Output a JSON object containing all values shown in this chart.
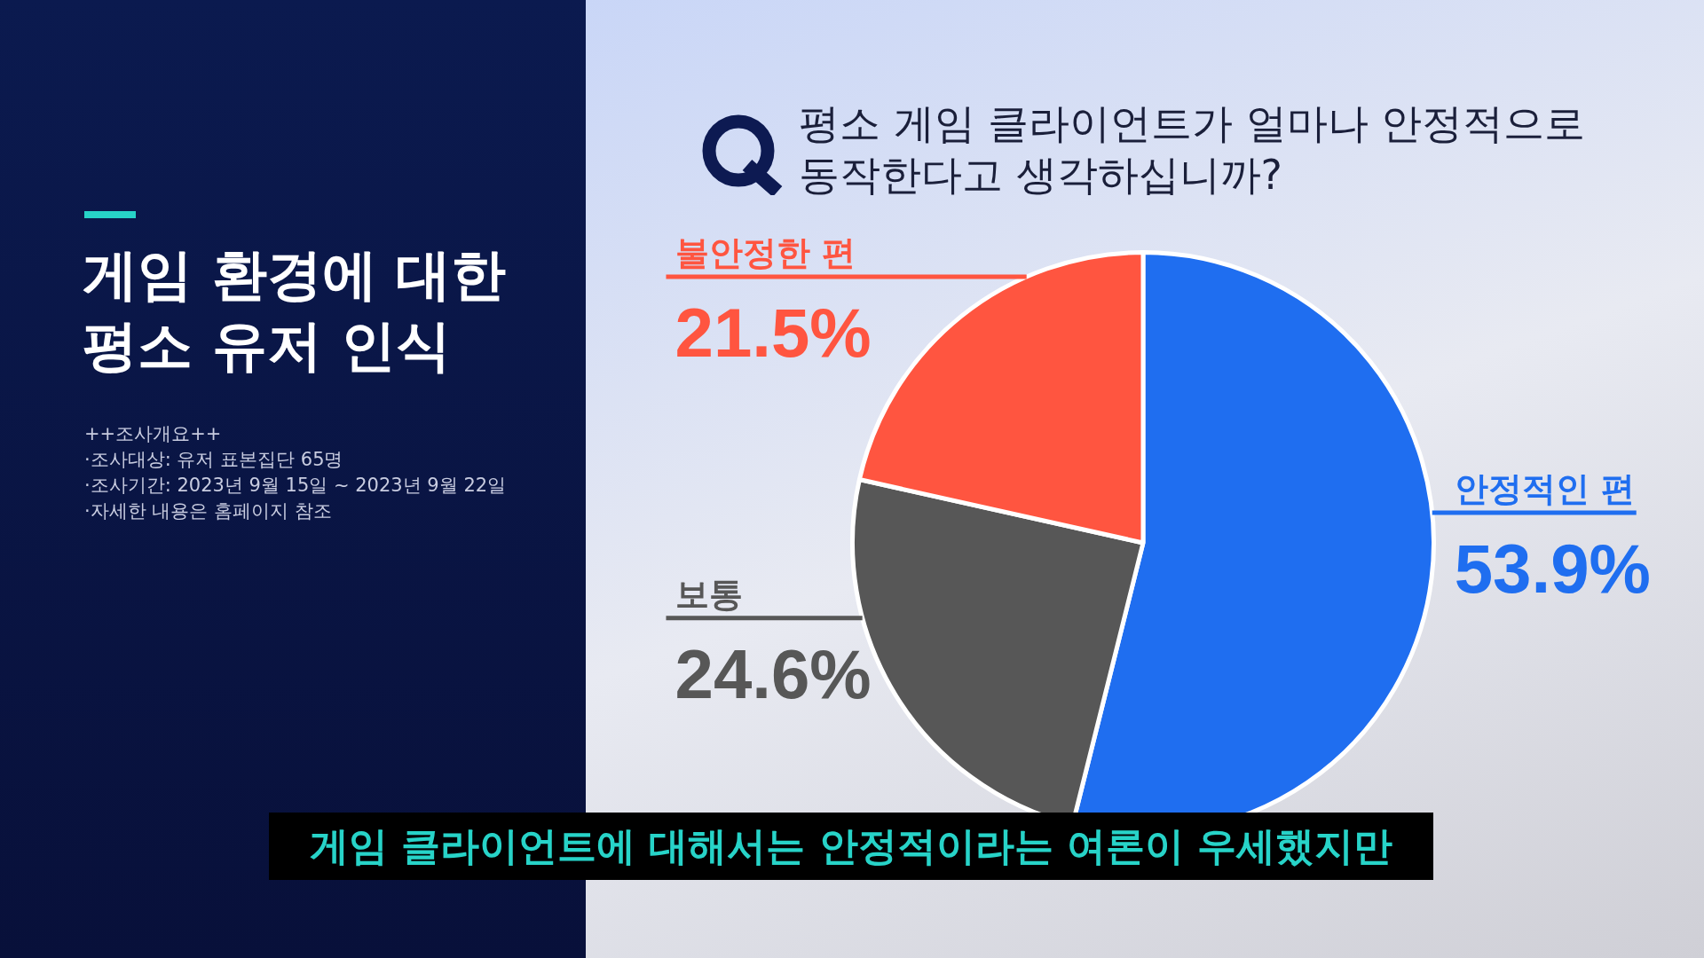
{
  "chart_data": {
    "type": "pie",
    "title": "게임 환경에 대한\n평소 유저 인식",
    "subtitle": "평소 게임 클라이언트가 얼마나 안정적으로\n동작한다고 생각하십니까?",
    "categories": [
      "안정적인 편",
      "보통",
      "불안정한 편"
    ],
    "values": [
      53.9,
      24.6,
      21.5
    ],
    "colors": [
      "#1f6ef0",
      "#575757",
      "#ff5540"
    ],
    "value_labels": [
      "53.9%",
      "24.6%",
      "21.5%"
    ],
    "legend": false,
    "annotations": [
      "++조사개요++",
      "·조사대상: 유저 표본집단 65명",
      "·조사기간: 2023년 9월 15일 ~ 2023년 9월 22일",
      "·자세한 내용은 홈페이지 참조",
      "게임 클라이언트에 대해서는 안정적이라는 여론이 우세했지만"
    ]
  }
}
